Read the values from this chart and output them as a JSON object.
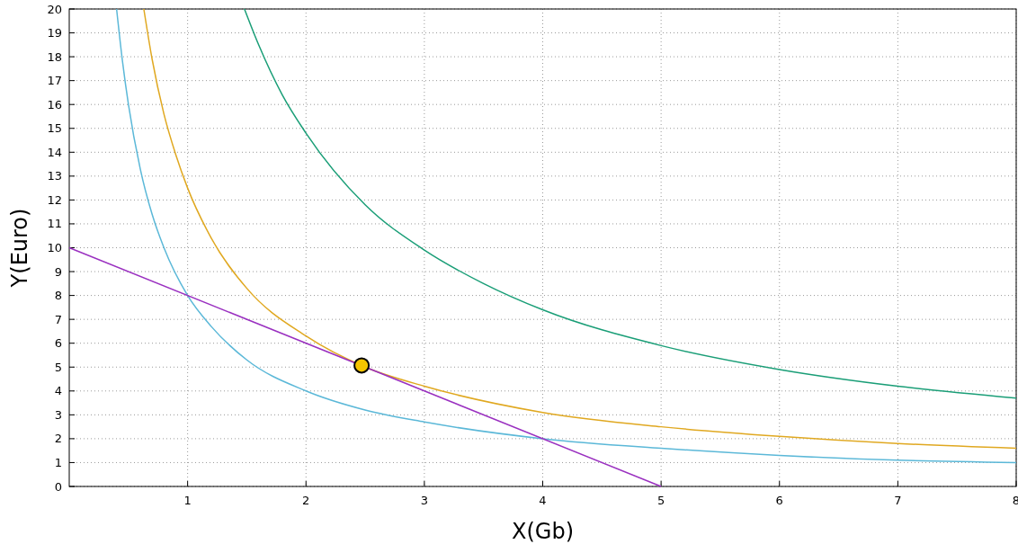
{
  "chart_data": {
    "type": "line",
    "xlabel": "X(Gb)",
    "ylabel": "Y(Euro)",
    "xlim": [
      0,
      8
    ],
    "ylim": [
      0,
      20
    ],
    "xticks": [
      1,
      2,
      3,
      4,
      5,
      6,
      7,
      8
    ],
    "yticks": [
      0,
      1,
      2,
      3,
      4,
      5,
      6,
      7,
      8,
      9,
      10,
      11,
      12,
      13,
      14,
      15,
      16,
      17,
      18,
      19,
      20
    ],
    "grid": true,
    "series": [
      {
        "color": "#5bb8d8",
        "x": [
          0.4,
          0.45,
          0.5,
          0.6,
          0.7,
          0.8,
          1,
          1.2,
          1.5,
          2,
          2.5,
          3,
          4,
          5,
          6,
          7,
          8
        ],
        "values": [
          20,
          17.8,
          16,
          13.3,
          11.4,
          10,
          8,
          6.7,
          5.3,
          4,
          3.2,
          2.7,
          2,
          1.6,
          1.3,
          1.1,
          1
        ]
      },
      {
        "color": "#e0a820",
        "x": [
          0.63,
          0.7,
          0.8,
          0.9,
          1,
          1.2,
          1.5,
          2,
          2.5,
          3,
          4,
          5,
          6,
          7,
          8
        ],
        "values": [
          20,
          17.9,
          15.6,
          13.9,
          12.5,
          10.4,
          8.3,
          6.3,
          5,
          4.2,
          3.1,
          2.5,
          2.1,
          1.8,
          1.6
        ]
      },
      {
        "color": "#1a9e77",
        "x": [
          1.48,
          1.6,
          1.8,
          2,
          2.5,
          3,
          3.5,
          4,
          5,
          6,
          7,
          8
        ],
        "values": [
          20,
          18.5,
          16.4,
          14.8,
          11.8,
          9.9,
          8.5,
          7.4,
          5.9,
          4.9,
          4.2,
          3.7
        ]
      },
      {
        "color": "#9a30c0",
        "x": [
          0,
          5
        ],
        "values": [
          10,
          0
        ]
      },
      {
        "type": "scatter",
        "color": "#f5c400",
        "marker": "circle",
        "x": [
          2.47
        ],
        "values": [
          5.07
        ]
      }
    ]
  }
}
